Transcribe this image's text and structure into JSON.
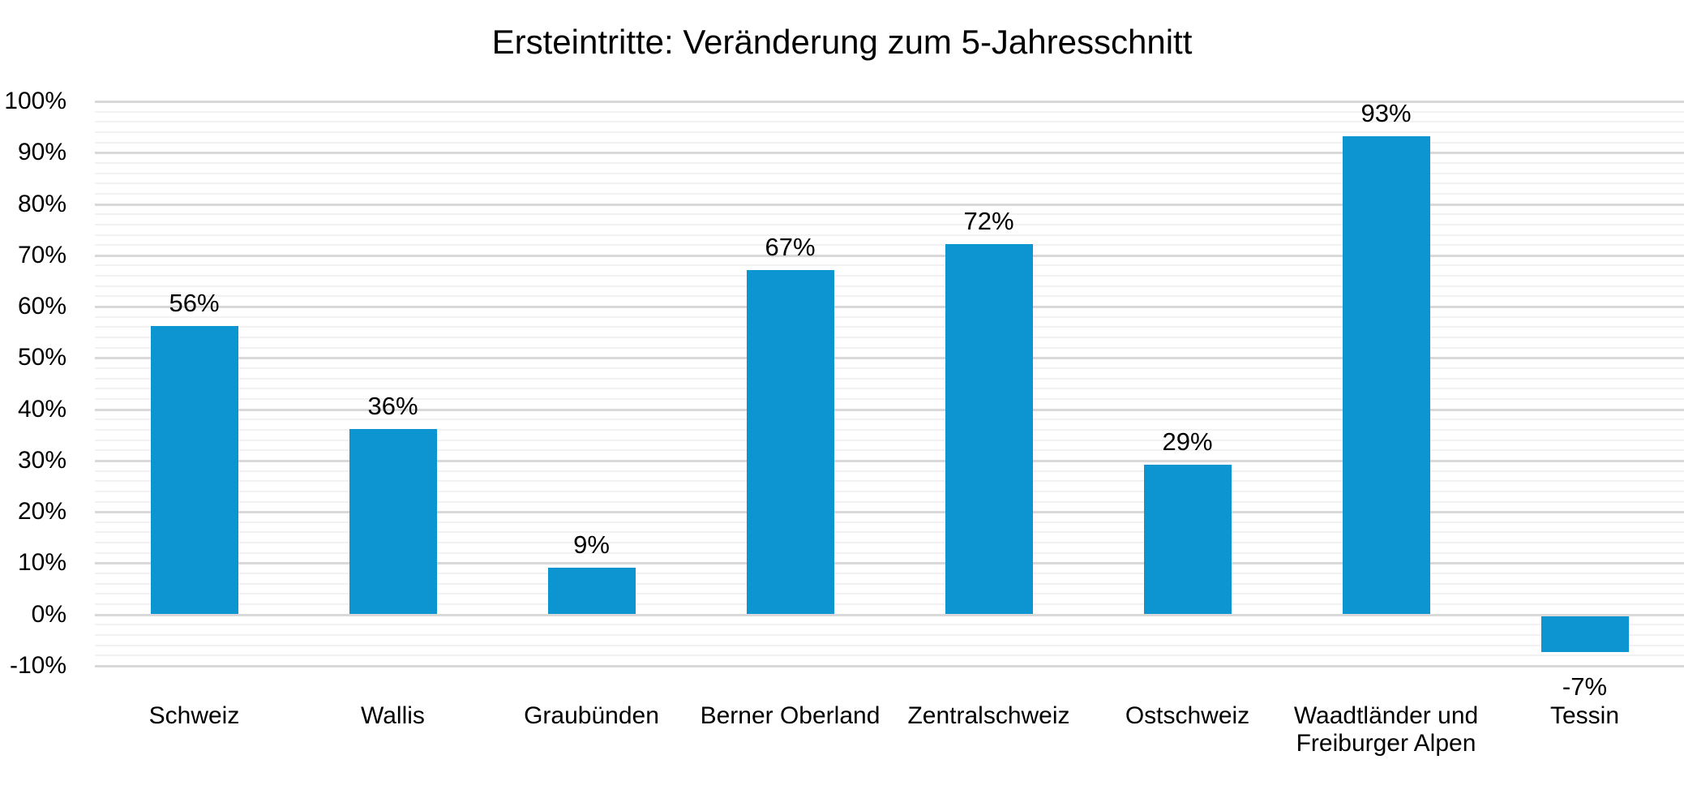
{
  "chart_data": {
    "type": "bar",
    "title": "Ersteintritte: Veränderung zum 5-Jahresschnitt",
    "categories": [
      "Schweiz",
      "Wallis",
      "Graubünden",
      "Berner Oberland",
      "Zentralschweiz",
      "Ostschweiz",
      "Waadtländer und Freiburger Alpen",
      "Tessin"
    ],
    "values": [
      56,
      36,
      9,
      67,
      72,
      29,
      93,
      -7
    ],
    "data_labels": [
      "56%",
      "36%",
      "9%",
      "67%",
      "72%",
      "29%",
      "93%",
      "-7%"
    ],
    "xlabel": "",
    "ylabel": "",
    "ylim": [
      -10,
      100
    ],
    "y_ticks": [
      100,
      90,
      80,
      70,
      60,
      50,
      40,
      30,
      20,
      10,
      0,
      -10
    ],
    "y_tick_labels": [
      "100%",
      "90%",
      "80%",
      "70%",
      "60%",
      "50%",
      "40%",
      "30%",
      "20%",
      "10%",
      "0%",
      "-10%"
    ],
    "major_grid_step": 10,
    "minor_grid_step": 2,
    "grid": "horizontal major + minor",
    "legend": "none",
    "colors": {
      "bar": "#0c95d0",
      "major_gridline": "#d9d9d9",
      "minor_gridline": "#f2f2f2",
      "text": "#000000",
      "background": "#ffffff"
    }
  }
}
